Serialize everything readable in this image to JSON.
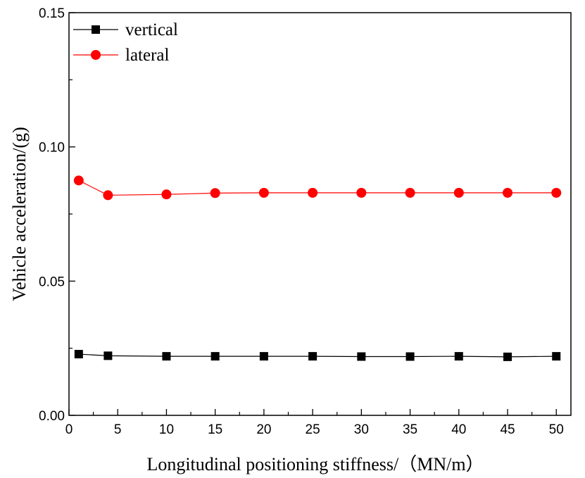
{
  "chart_data": {
    "type": "line",
    "xlabel": "Longitudinal positioning stiffness/（MN/m）",
    "ylabel": "Vehicle acceleration/(g)",
    "xlim": [
      0,
      51.5
    ],
    "ylim": [
      0,
      0.15
    ],
    "xticks": [
      0,
      5,
      10,
      15,
      20,
      25,
      30,
      35,
      40,
      45,
      50
    ],
    "yticks": [
      0.0,
      0.05,
      0.1,
      0.15
    ],
    "xtick_labels": [
      "0",
      "5",
      "10",
      "15",
      "20",
      "25",
      "30",
      "35",
      "40",
      "45",
      "50"
    ],
    "ytick_labels": [
      "0.00",
      "0.05",
      "0.10",
      "0.15"
    ],
    "x": [
      1,
      4,
      10,
      15,
      20,
      25,
      30,
      35,
      40,
      45,
      50
    ],
    "legend_position": "top-left",
    "grid": false,
    "series": [
      {
        "name": "vertical",
        "color": "#000000",
        "marker": "square",
        "values": [
          0.0228,
          0.0222,
          0.022,
          0.022,
          0.022,
          0.022,
          0.0219,
          0.0219,
          0.022,
          0.0218,
          0.022
        ]
      },
      {
        "name": "lateral",
        "color": "#ff0000",
        "marker": "circle",
        "values": [
          0.0875,
          0.082,
          0.0823,
          0.0828,
          0.0829,
          0.0829,
          0.0829,
          0.0829,
          0.0829,
          0.0829,
          0.0829
        ]
      }
    ]
  }
}
